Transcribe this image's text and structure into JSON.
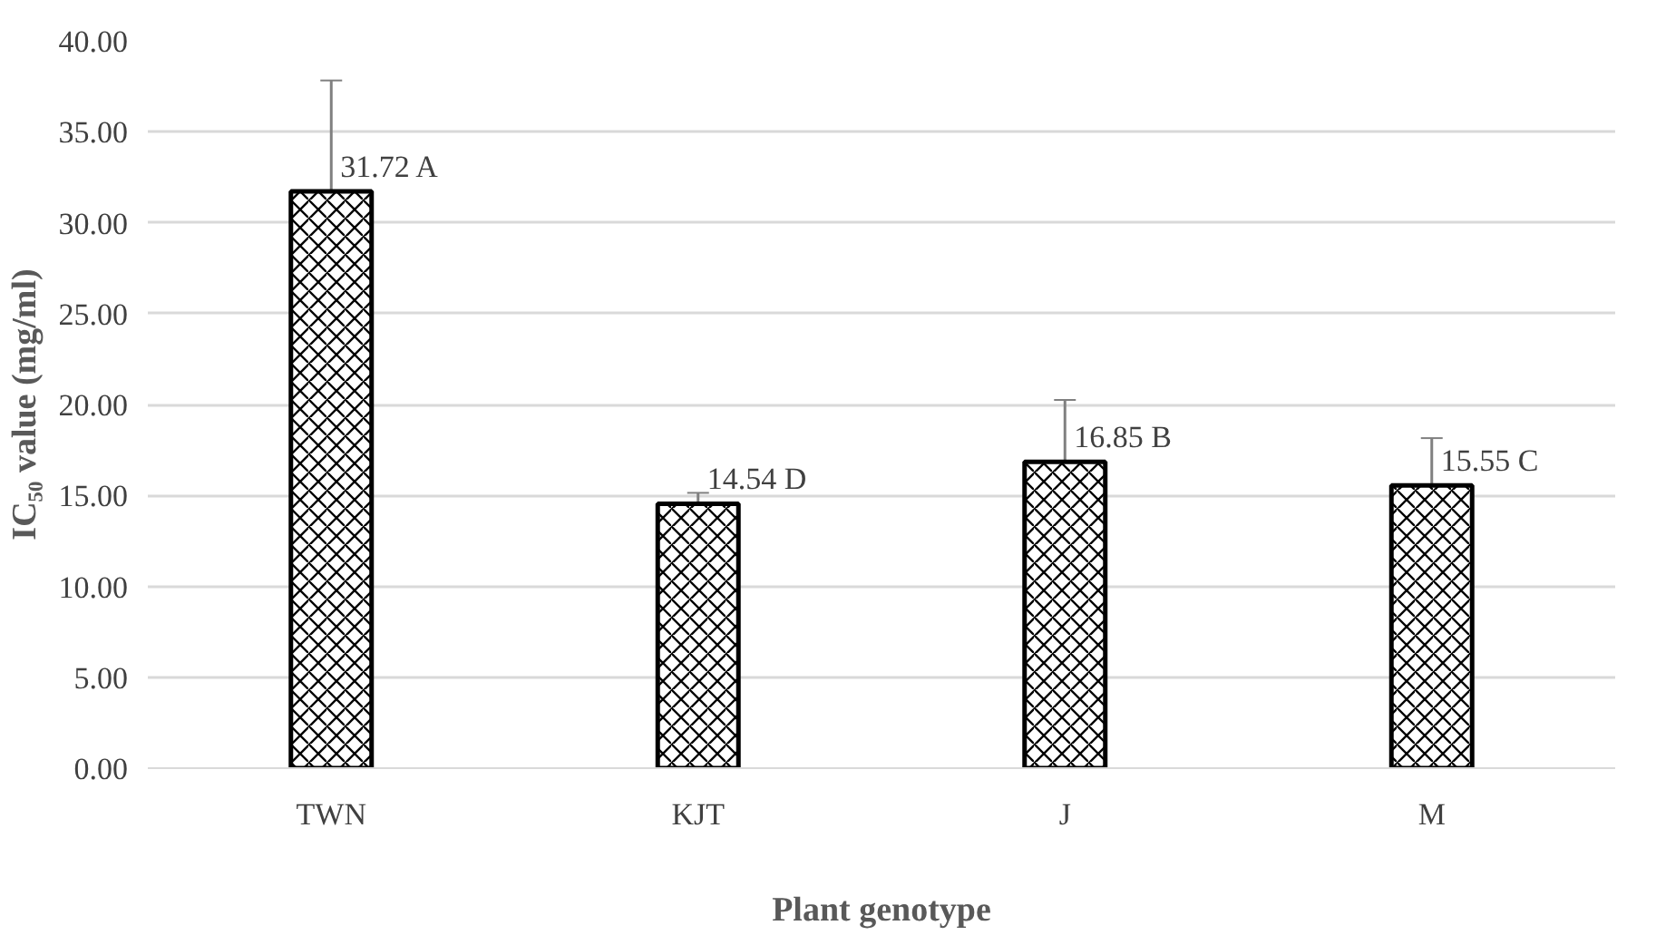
{
  "chart_data": {
    "type": "bar",
    "xlabel": "Plant genotype",
    "ylabel": "IC₅₀ value (mg/ml)",
    "categories": [
      "TWN",
      "KJT",
      "J",
      "M"
    ],
    "values": [
      31.72,
      14.54,
      16.85,
      15.55
    ],
    "errors": [
      6.1,
      0.6,
      3.4,
      2.6
    ],
    "value_labels": [
      "31.72 A",
      "14.54 D",
      "16.85 B",
      "15.55 C"
    ],
    "color": "#000000",
    "ylim": [
      0,
      40
    ],
    "yticks": [
      {
        "value": 0,
        "label": "0.00"
      },
      {
        "value": 5,
        "label": "5.00"
      },
      {
        "value": 10,
        "label": "10.00"
      },
      {
        "value": 15,
        "label": "15.00"
      },
      {
        "value": 20,
        "label": "20.00"
      },
      {
        "value": 25,
        "label": "25.00"
      },
      {
        "value": 30,
        "label": "30.00"
      },
      {
        "value": 35,
        "label": "35.00"
      },
      {
        "value": 40,
        "label": "40.00"
      }
    ],
    "grid": "y"
  }
}
